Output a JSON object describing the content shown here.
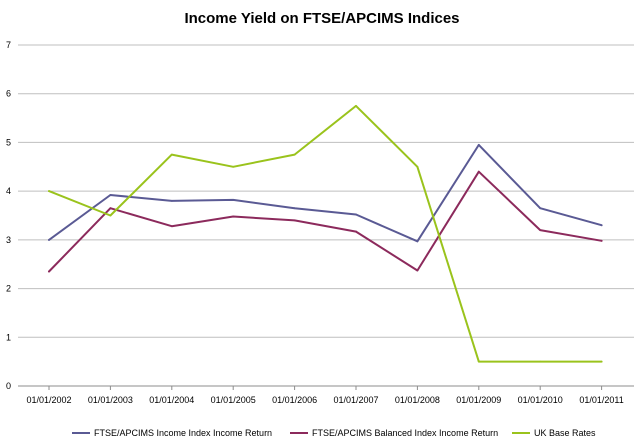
{
  "chart_data": {
    "type": "line",
    "title": "Income Yield on FTSE/APCIMS Indices",
    "xlabel": "",
    "ylabel": "",
    "ylim": [
      0,
      7
    ],
    "yticks": [
      "0",
      "1",
      "2",
      "3",
      "4",
      "5",
      "6",
      "7"
    ],
    "grid": true,
    "legend_position": "bottom",
    "categories": [
      "01/01/2002",
      "01/01/2003",
      "01/01/2004",
      "01/01/2005",
      "01/01/2006",
      "01/01/2007",
      "01/01/2008",
      "01/01/2009",
      "01/01/2010",
      "01/01/2011"
    ],
    "series": [
      {
        "name": "FTSE/APCIMS Income Index Income Return",
        "color": "#5a5a94",
        "values": [
          3.0,
          3.92,
          3.8,
          3.82,
          3.65,
          3.52,
          2.97,
          4.95,
          3.65,
          3.3
        ]
      },
      {
        "name": "FTSE/APCIMS Balanced Index Income Return",
        "color": "#8c2a5c",
        "values": [
          2.35,
          3.65,
          3.28,
          3.48,
          3.4,
          3.17,
          2.37,
          4.4,
          3.2,
          2.98
        ]
      },
      {
        "name": "UK Base Rates",
        "color": "#9ac31c",
        "values": [
          4.0,
          3.5,
          4.75,
          4.5,
          4.75,
          5.75,
          4.5,
          0.5,
          0.5,
          0.5
        ]
      }
    ]
  }
}
